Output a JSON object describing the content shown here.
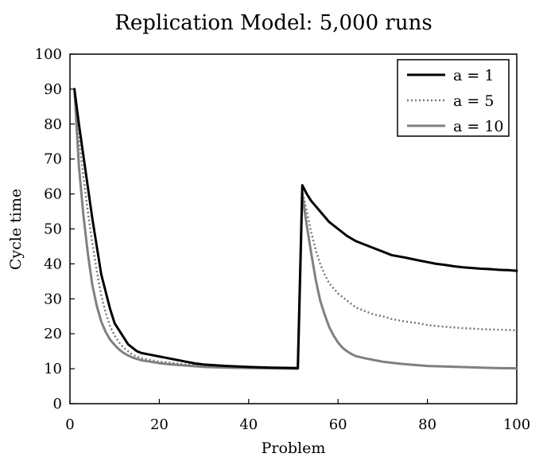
{
  "chart_data": {
    "type": "line",
    "title": "Replication Model: 5,000 runs",
    "xlabel": "Problem",
    "ylabel": "Cycle time",
    "xlim": [
      0,
      100
    ],
    "ylim": [
      0,
      100
    ],
    "xticks": [
      0,
      20,
      40,
      60,
      80,
      100
    ],
    "yticks": [
      0,
      10,
      20,
      30,
      40,
      50,
      60,
      70,
      80,
      90,
      100
    ],
    "grid": false,
    "legend_position": "top-right",
    "series": [
      {
        "name": "a = 1",
        "color": "#000000",
        "style": "solid",
        "points": [
          [
            1,
            90
          ],
          [
            2,
            80
          ],
          [
            3,
            71
          ],
          [
            4,
            62
          ],
          [
            5,
            53
          ],
          [
            6,
            45
          ],
          [
            7,
            37
          ],
          [
            8,
            32
          ],
          [
            9,
            27
          ],
          [
            10,
            23
          ],
          [
            11,
            21
          ],
          [
            12,
            19
          ],
          [
            13,
            17
          ],
          [
            14,
            16
          ],
          [
            15,
            15
          ],
          [
            16,
            14.5
          ],
          [
            18,
            14
          ],
          [
            20,
            13.5
          ],
          [
            22,
            13
          ],
          [
            24,
            12.5
          ],
          [
            26,
            12
          ],
          [
            28,
            11.5
          ],
          [
            30,
            11.2
          ],
          [
            35,
            10.8
          ],
          [
            40,
            10.5
          ],
          [
            45,
            10.3
          ],
          [
            51,
            10.2
          ],
          [
            52,
            62.5
          ],
          [
            53,
            60
          ],
          [
            54,
            58
          ],
          [
            56,
            55
          ],
          [
            58,
            52
          ],
          [
            60,
            50
          ],
          [
            62,
            48
          ],
          [
            64,
            46.5
          ],
          [
            66,
            45.5
          ],
          [
            68,
            44.5
          ],
          [
            70,
            43.5
          ],
          [
            72,
            42.5
          ],
          [
            75,
            41.8
          ],
          [
            78,
            41
          ],
          [
            80,
            40.5
          ],
          [
            82,
            40
          ],
          [
            84,
            39.7
          ],
          [
            86,
            39.3
          ],
          [
            88,
            39
          ],
          [
            90,
            38.8
          ],
          [
            92,
            38.6
          ],
          [
            94,
            38.5
          ],
          [
            96,
            38.3
          ],
          [
            98,
            38.2
          ],
          [
            100,
            38
          ]
        ]
      },
      {
        "name": "a = 5",
        "color": "#777777",
        "style": "dotted",
        "points": [
          [
            1,
            90
          ],
          [
            2,
            76
          ],
          [
            3,
            65
          ],
          [
            4,
            55
          ],
          [
            5,
            46
          ],
          [
            6,
            38
          ],
          [
            7,
            31
          ],
          [
            8,
            26
          ],
          [
            9,
            22
          ],
          [
            10,
            19.5
          ],
          [
            11,
            17.5
          ],
          [
            12,
            16
          ],
          [
            13,
            15
          ],
          [
            14,
            14
          ],
          [
            15,
            13.5
          ],
          [
            16,
            13
          ],
          [
            18,
            12.5
          ],
          [
            20,
            12
          ],
          [
            22,
            11.8
          ],
          [
            24,
            11.5
          ],
          [
            26,
            11.2
          ],
          [
            28,
            11
          ],
          [
            30,
            10.8
          ],
          [
            35,
            10.5
          ],
          [
            40,
            10.3
          ],
          [
            45,
            10.1
          ],
          [
            51,
            10
          ],
          [
            52,
            61
          ],
          [
            53,
            55
          ],
          [
            54,
            49
          ],
          [
            55,
            44
          ],
          [
            56,
            40
          ],
          [
            57,
            37
          ],
          [
            58,
            34.5
          ],
          [
            60,
            31.5
          ],
          [
            62,
            29.5
          ],
          [
            64,
            27.5
          ],
          [
            66,
            26.5
          ],
          [
            68,
            25.5
          ],
          [
            70,
            25
          ],
          [
            72,
            24.2
          ],
          [
            75,
            23.5
          ],
          [
            78,
            23
          ],
          [
            80,
            22.5
          ],
          [
            82,
            22.2
          ],
          [
            84,
            22
          ],
          [
            86,
            21.8
          ],
          [
            88,
            21.6
          ],
          [
            90,
            21.5
          ],
          [
            92,
            21.3
          ],
          [
            95,
            21.2
          ],
          [
            98,
            21.1
          ],
          [
            100,
            21
          ]
        ]
      },
      {
        "name": "a = 10",
        "color": "#808080",
        "style": "solid",
        "points": [
          [
            1,
            90
          ],
          [
            2,
            68
          ],
          [
            3,
            54
          ],
          [
            4,
            43
          ],
          [
            5,
            34
          ],
          [
            6,
            28
          ],
          [
            7,
            23.5
          ],
          [
            8,
            20.5
          ],
          [
            9,
            18.3
          ],
          [
            10,
            16.8
          ],
          [
            11,
            15.5
          ],
          [
            12,
            14.5
          ],
          [
            13,
            13.8
          ],
          [
            14,
            13.2
          ],
          [
            15,
            12.8
          ],
          [
            16,
            12.4
          ],
          [
            18,
            12
          ],
          [
            20,
            11.6
          ],
          [
            22,
            11.3
          ],
          [
            24,
            11.1
          ],
          [
            26,
            10.9
          ],
          [
            28,
            10.7
          ],
          [
            30,
            10.5
          ],
          [
            35,
            10.3
          ],
          [
            40,
            10.2
          ],
          [
            45,
            10.1
          ],
          [
            51,
            10
          ],
          [
            52,
            60
          ],
          [
            53,
            51
          ],
          [
            54,
            43
          ],
          [
            55,
            35.5
          ],
          [
            56,
            29.5
          ],
          [
            57,
            25.5
          ],
          [
            58,
            22
          ],
          [
            59,
            19.5
          ],
          [
            60,
            17.5
          ],
          [
            61,
            16
          ],
          [
            62,
            15
          ],
          [
            63,
            14.2
          ],
          [
            64,
            13.6
          ],
          [
            66,
            13
          ],
          [
            68,
            12.5
          ],
          [
            70,
            12
          ],
          [
            72,
            11.7
          ],
          [
            75,
            11.3
          ],
          [
            78,
            11
          ],
          [
            80,
            10.8
          ],
          [
            85,
            10.6
          ],
          [
            90,
            10.4
          ],
          [
            95,
            10.2
          ],
          [
            100,
            10.1
          ]
        ]
      }
    ]
  }
}
